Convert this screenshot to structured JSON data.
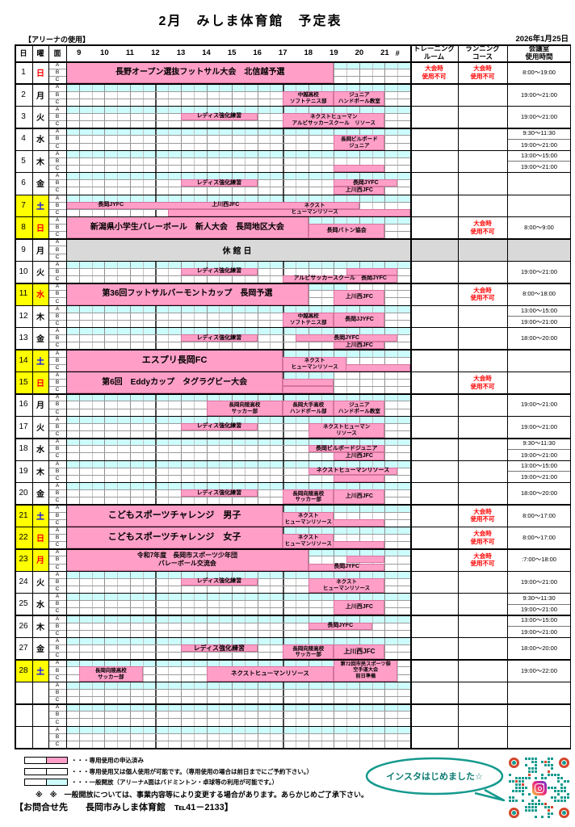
{
  "title": "2月　みしま体育館　予定表",
  "note_header": "【アリーナの使用】",
  "date": "2026年1月25日",
  "columns": {
    "day": "日",
    "weekday": "曜",
    "court": "面",
    "hash": "#",
    "training": [
      "トレーニング",
      "ルーム"
    ],
    "running": [
      "ランニング",
      "コース"
    ],
    "meeting": [
      "会議室",
      "使用時間"
    ]
  },
  "hours": [
    9,
    10,
    11,
    12,
    13,
    14,
    15,
    16,
    17,
    18,
    19,
    20,
    21
  ],
  "court_rows": [
    "A",
    "B",
    "C"
  ],
  "unavailable": [
    "大会時",
    "使用不可"
  ],
  "closed_label": "休館日",
  "colors": {
    "pink": "#ff9fc7",
    "pink_border": "#d5739e",
    "cyan": "#ccfcfc",
    "yellow": "#ffff00",
    "gray": "#d9d9d9",
    "red": "#ff0000",
    "blue": "#0000ff",
    "teal": "#159a8e",
    "orange": "#d2452b"
  },
  "days": [
    {
      "d": "1",
      "w": "日",
      "wc": "red",
      "cyan": [
        [
          19,
          22
        ]
      ],
      "ev": [
        {
          "r": "ABC",
          "t": [
            8.5,
            19
          ],
          "l": [
            "長野オープン選抜フットサル大会　北信越予選"
          ],
          "fs": 10,
          "b": 1
        }
      ],
      "tr": 1,
      "rn": 1,
      "mt": [
        "8:00～19:00"
      ]
    },
    {
      "d": "2",
      "w": "月",
      "cyan": "full",
      "ev": [
        {
          "r": "BC",
          "t": [
            17,
            19
          ],
          "l": [
            "中越高校",
            "ソフトテニス部"
          ]
        },
        {
          "r": "BC",
          "t": [
            19,
            21
          ],
          "l": [
            "ジュニア",
            "ハンドボール教室"
          ]
        }
      ],
      "mt": [
        "19:00～21:00"
      ]
    },
    {
      "d": "3",
      "w": "火",
      "cyan": "full",
      "ev": [
        {
          "r": "B",
          "t": [
            13,
            16
          ],
          "l": [
            "レディス強化練習"
          ]
        },
        {
          "r": "BC",
          "t": [
            17,
            21
          ],
          "l": [
            "ネクストヒューマン",
            "アルビサッカースクール　リソース"
          ]
        }
      ],
      "mt": [
        "19:00～21:00"
      ]
    },
    {
      "d": "4",
      "w": "水",
      "cyan": "full",
      "ev": [
        {
          "r": "BC",
          "t": [
            19,
            21
          ],
          "l": [
            "長岡ビルボード",
            "ジュニア"
          ]
        }
      ],
      "mt": [
        "9:30～11:30",
        "19:00～21:00"
      ]
    },
    {
      "d": "5",
      "w": "木",
      "cyan": "full",
      "ev": [
        {
          "r": "C",
          "t": [
            19,
            21
          ],
          "l": []
        }
      ],
      "mt": [
        "13:00～15:00",
        "19:00～21:00"
      ]
    },
    {
      "d": "6",
      "w": "金",
      "cyan": "full",
      "ev": [
        {
          "r": "B",
          "t": [
            13,
            16
          ],
          "l": [
            "レディス強化練習"
          ]
        },
        {
          "r": "B",
          "t": [
            19,
            21.5
          ],
          "l": [
            "長岡JYFC"
          ]
        },
        {
          "r": "C",
          "t": [
            19,
            21
          ],
          "l": [
            "上川西JFC"
          ]
        }
      ],
      "mt": []
    },
    {
      "d": "7",
      "w": "土",
      "wc": "blue",
      "y": 1,
      "cyan": "full",
      "ev": [
        {
          "r": "B",
          "t": [
            8.5,
            20
          ],
          "l": []
        },
        {
          "r": "C",
          "t": [
            12.5,
            22
          ],
          "l": []
        },
        {
          "r": "B",
          "t": [
            9,
            11.5
          ],
          "l": [
            "長岡JYFC"
          ],
          "bg": "n"
        },
        {
          "r": "B",
          "t": [
            12.5,
            17
          ],
          "l": [
            "上川西JFC"
          ],
          "bg": "n"
        },
        {
          "r": "BC",
          "t": [
            17,
            19.5
          ],
          "l": [
            "ネクスト",
            "ヒューマンリソース"
          ],
          "bg": "n"
        }
      ],
      "mt": []
    },
    {
      "d": "8",
      "w": "日",
      "wc": "red",
      "y": 1,
      "cyan": [
        [
          18,
          22
        ]
      ],
      "ev": [
        {
          "r": "ABC",
          "t": [
            8.5,
            18
          ],
          "l": [
            "新潟県小学生バレーボール　新人大会　長岡地区大会"
          ],
          "fs": 10,
          "b": 1
        },
        {
          "r": "BC",
          "t": [
            18,
            21
          ],
          "l": [
            "長岡バトン協会"
          ]
        }
      ],
      "rn": 1,
      "mt": [
        "8:00～9:00"
      ]
    },
    {
      "d": "9",
      "w": "月",
      "closed": 1
    },
    {
      "d": "10",
      "w": "火",
      "cyan": "full",
      "ev": [
        {
          "r": "B",
          "t": [
            13,
            16
          ],
          "l": [
            "レディス強化練習"
          ]
        },
        {
          "r": "C",
          "t": [
            17,
            21.5
          ],
          "l": [
            "アルビサッカースクール　長岡JYFC"
          ]
        },
        {
          "r": "B",
          "t": [
            19.5,
            21.5
          ],
          "l": []
        }
      ],
      "mt": [
        "19:00～21:00"
      ]
    },
    {
      "d": "11",
      "w": "水",
      "wc": "red",
      "y": 1,
      "cyan": [
        [
          18,
          19.5
        ]
      ],
      "ev": [
        {
          "r": "ABC",
          "t": [
            8.5,
            18
          ],
          "l": [
            "第36回フットサルバーモントカップ　長岡予選"
          ],
          "fs": 10,
          "b": 1
        },
        {
          "r": "BC",
          "t": [
            19,
            21
          ],
          "l": [
            "上川西JFC"
          ]
        }
      ],
      "rn": 1,
      "mt": [
        "8:00～18:00"
      ]
    },
    {
      "d": "12",
      "w": "木",
      "cyan": "full",
      "ev": [
        {
          "r": "BC",
          "t": [
            17,
            19
          ],
          "l": [
            "中越高校",
            "ソフトテニス部"
          ]
        },
        {
          "r": "BC",
          "t": [
            19,
            21
          ],
          "l": [
            "長岡JJYFC"
          ]
        }
      ],
      "mt": [
        "13:00～15:00",
        "19:00～21:00"
      ]
    },
    {
      "d": "13",
      "w": "金",
      "cyan": "full",
      "ev": [
        {
          "r": "B",
          "t": [
            13,
            16
          ],
          "l": [
            "レディス強化練習"
          ]
        },
        {
          "r": "B",
          "t": [
            17.5,
            21.5
          ],
          "l": [
            "長岡JYFC"
          ]
        },
        {
          "r": "C",
          "t": [
            19,
            21
          ],
          "l": [
            "上川西JFC"
          ]
        }
      ],
      "mt": [
        "18:00～20:00"
      ]
    },
    {
      "d": "14",
      "w": "土",
      "wc": "blue",
      "y": 1,
      "cyan": [
        [
          17,
          22
        ]
      ],
      "ev": [
        {
          "r": "ABC",
          "t": [
            8.5,
            17
          ],
          "l": [
            "エスプリ長岡FC"
          ],
          "fs": 11,
          "b": 1
        },
        {
          "r": "C",
          "t": [
            17,
            22
          ],
          "l": []
        },
        {
          "r": "BC",
          "t": [
            17,
            19.5
          ],
          "l": [
            "ネクスト",
            "ヒューマンリソース"
          ]
        }
      ],
      "mt": []
    },
    {
      "d": "15",
      "w": "日",
      "wc": "red",
      "y": 1,
      "cyan": [
        [
          17,
          19
        ]
      ],
      "ev": [
        {
          "r": "ABC",
          "t": [
            8.5,
            17
          ],
          "l": [
            "第6回　Eddyカップ　タグラグビー大会"
          ],
          "fs": 10,
          "b": 1
        },
        {
          "r": "B",
          "t": [
            17,
            19
          ],
          "l": []
        },
        {
          "r": "C",
          "t": [
            17,
            19
          ],
          "l": []
        }
      ],
      "rn": 1,
      "mt": []
    },
    {
      "d": "16",
      "w": "月",
      "cyan": "full",
      "ev": [
        {
          "r": "BC",
          "t": [
            14,
            17
          ],
          "l": [
            "長岡向陵高校",
            "サッカー部"
          ]
        },
        {
          "r": "BC",
          "t": [
            17,
            19
          ],
          "l": [
            "長岡大手高校",
            "ハンドボール部"
          ]
        },
        {
          "r": "BC",
          "t": [
            19,
            21
          ],
          "l": [
            "ジュニア",
            "ハンドボール教室"
          ]
        }
      ],
      "mt": [
        "19:00～21:00"
      ]
    },
    {
      "d": "17",
      "w": "火",
      "cyan": "full",
      "ev": [
        {
          "r": "B",
          "t": [
            13,
            16
          ],
          "l": [
            "レディス強化練習"
          ]
        },
        {
          "r": "BC",
          "t": [
            18,
            21
          ],
          "l": [
            "ネクストヒューマン",
            "リソース"
          ]
        }
      ],
      "mt": [
        "19:00～21:00"
      ]
    },
    {
      "d": "18",
      "w": "水",
      "cyan": "full",
      "ev": [
        {
          "r": "B",
          "t": [
            18,
            21
          ],
          "l": [
            "長岡ビルボードジュニア"
          ]
        },
        {
          "r": "C",
          "t": [
            19,
            21
          ],
          "l": [
            "上川西JFC"
          ]
        }
      ],
      "mt": [
        "9:30～11:30",
        "19:00～21:00"
      ]
    },
    {
      "d": "19",
      "w": "木",
      "cyan": "full",
      "ev": [
        {
          "r": "B",
          "t": [
            18,
            21.5
          ],
          "l": [
            "ネクストヒューマンリソース"
          ]
        },
        {
          "r": "C",
          "t": [
            19,
            21
          ],
          "l": []
        }
      ],
      "mt": [
        "13:00～15:00",
        "19:00～21:00"
      ]
    },
    {
      "d": "20",
      "w": "金",
      "cyan": "full",
      "ev": [
        {
          "r": "B",
          "t": [
            13,
            16
          ],
          "l": [
            "レディス強化練習"
          ]
        },
        {
          "r": "BC",
          "t": [
            17,
            19
          ],
          "l": [
            "長岡向陵高校",
            "サッカー部"
          ]
        },
        {
          "r": "BC",
          "t": [
            19,
            21
          ],
          "l": [
            "上川西JFC"
          ]
        }
      ],
      "mt": [
        "18:00～20:00"
      ]
    },
    {
      "d": "21",
      "w": "土",
      "wc": "blue",
      "y": 1,
      "cyan": [
        [
          17,
          22
        ]
      ],
      "ev": [
        {
          "r": "ABC",
          "t": [
            8.5,
            17
          ],
          "l": [
            "こどもスポーツチャレンジ　男子"
          ],
          "fs": 11,
          "b": 1
        },
        {
          "r": "C",
          "t": [
            17,
            21
          ],
          "l": []
        },
        {
          "r": "BC",
          "t": [
            17,
            19
          ],
          "l": [
            "ネクスト",
            "ヒューマンリソース"
          ]
        }
      ],
      "rn": 1,
      "mt": [
        "8:00～17:00"
      ]
    },
    {
      "d": "22",
      "w": "日",
      "wc": "red",
      "y": 1,
      "cyan": [
        [
          17,
          22
        ]
      ],
      "ev": [
        {
          "r": "ABC",
          "t": [
            8.5,
            17
          ],
          "l": [
            "こどもスポーツチャレンジ　女子"
          ],
          "fs": 11,
          "b": 1
        },
        {
          "r": "C",
          "t": [
            17,
            21
          ],
          "l": []
        },
        {
          "r": "BC",
          "t": [
            17,
            19
          ],
          "l": [
            "ネクスト",
            "ヒューマンリソース"
          ]
        }
      ],
      "rn": 1,
      "mt": [
        "8:00～17:00"
      ]
    },
    {
      "d": "23",
      "w": "月",
      "wc": "red",
      "y": 1,
      "cyan": [
        [
          18,
          22
        ]
      ],
      "ev": [
        {
          "r": "ABC",
          "t": [
            8.5,
            18
          ],
          "l": [
            "令和7年度　長岡市スポーツ少年団",
            "バレーボール交流会"
          ],
          "fs": 8,
          "b": 1
        },
        {
          "r": "C",
          "t": [
            18,
            21
          ],
          "l": [
            "長岡JYFC"
          ]
        },
        {
          "r": "B",
          "t": [
            19.5,
            21
          ],
          "l": []
        }
      ],
      "rn": 1,
      "mt": [
        ":7:00～18:00"
      ]
    },
    {
      "d": "24",
      "w": "火",
      "cyan": "full",
      "ev": [
        {
          "r": "B",
          "t": [
            13,
            16
          ],
          "l": [
            "レディス強化練習"
          ]
        },
        {
          "r": "BC",
          "t": [
            18,
            21
          ],
          "l": [
            "ネクスト",
            "ヒューマンリソース"
          ]
        }
      ],
      "mt": [
        "19:00～21:00"
      ]
    },
    {
      "d": "25",
      "w": "水",
      "cyan": "full",
      "ev": [
        {
          "r": "BC",
          "t": [
            19,
            21
          ],
          "l": [
            "上川西JFC"
          ]
        }
      ],
      "mt": [
        "9:30～11:30",
        "19:00～21:00"
      ]
    },
    {
      "d": "26",
      "w": "木",
      "cyan": "full",
      "ev": [
        {
          "r": "B",
          "t": [
            18,
            20.5
          ],
          "l": [
            "長岡JYFC"
          ]
        }
      ],
      "mt": [
        "13:00～15:00",
        "19:00～21:00"
      ]
    },
    {
      "d": "27",
      "w": "金",
      "cyan": "full",
      "ev": [
        {
          "r": "B",
          "t": [
            13,
            16
          ],
          "l": [
            "レディス強化練習"
          ],
          "fs": 8
        },
        {
          "r": "BC",
          "t": [
            17,
            19
          ],
          "l": [
            "長岡向陵高校",
            "サッカー部"
          ]
        },
        {
          "r": "BC",
          "t": [
            19,
            21
          ],
          "l": [
            "上川西JFC"
          ],
          "fs": 8
        }
      ],
      "mt": [
        "18:00～20:00"
      ]
    },
    {
      "d": "28",
      "w": "土",
      "wc": "blue",
      "y": 1,
      "cyan": [
        [
          8.5,
          19
        ]
      ],
      "ev": [
        {
          "r": "BC",
          "t": [
            9,
            11.5
          ],
          "l": [
            "長岡向陵高校",
            "サッカー部"
          ]
        },
        {
          "r": "BC",
          "t": [
            14,
            19
          ],
          "l": [
            "ネクストヒューマンリソース"
          ],
          "fs": 7.5
        },
        {
          "r": "ABC",
          "t": [
            19,
            21.5
          ],
          "l": [
            "第72回市民スポーツ祭",
            "空手道大会",
            "前日準備"
          ]
        }
      ],
      "mt": [
        "19:00～22:00"
      ]
    },
    {
      "d": "",
      "w": "",
      "cyan": "full",
      "ev": [],
      "mt": []
    },
    {
      "d": "",
      "w": "",
      "cyan": "full",
      "ev": [],
      "mt": []
    },
    {
      "d": "",
      "w": "",
      "cyan": "full",
      "ev": [],
      "mt": []
    }
  ],
  "legend": [
    {
      "swatch": "pink",
      "text": "・・・専用使用の申込済み"
    },
    {
      "swatch": "white",
      "text": "・・・専用使用又は個人使用が可能です。（専用使用の場合は前日までにご予約下さい。）"
    },
    {
      "swatch": "cyan",
      "text": "・・・一般開放（アリーナA面はバドミントン・卓球等の利用が可能です。）"
    }
  ],
  "note": "※　※　一般開放については、事業内容等により変更する場合があります。あらかじめご了承下さい。",
  "contact": "【お問合せ先　　長岡市みしま体育館　℡41－2133】",
  "insta": "インスタはじめました☆"
}
